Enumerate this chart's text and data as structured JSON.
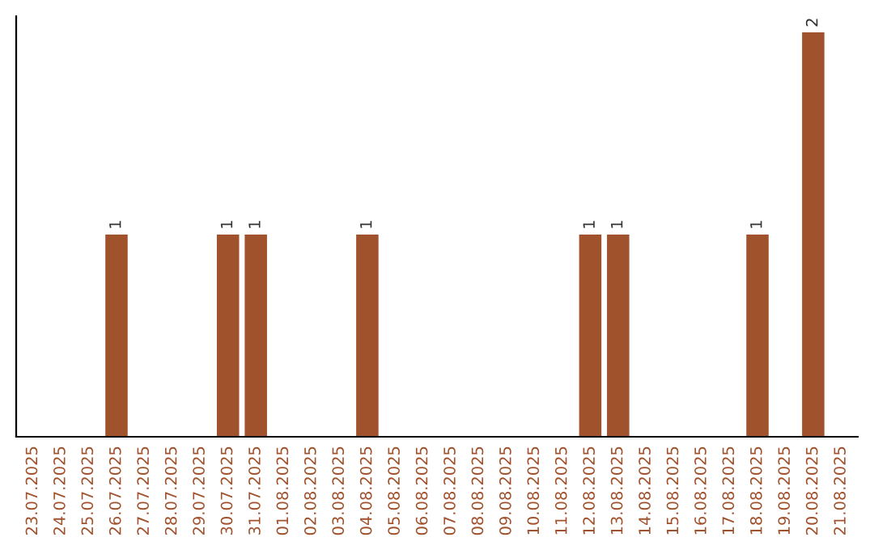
{
  "chart_data": {
    "type": "bar",
    "categories": [
      "23.07.2025",
      "24.07.2025",
      "25.07.2025",
      "26.07.2025",
      "27.07.2025",
      "28.07.2025",
      "29.07.2025",
      "30.07.2025",
      "31.07.2025",
      "01.08.2025",
      "02.08.2025",
      "03.08.2025",
      "04.08.2025",
      "05.08.2025",
      "06.08.2025",
      "07.08.2025",
      "08.08.2025",
      "09.08.2025",
      "10.08.2025",
      "11.08.2025",
      "12.08.2025",
      "13.08.2025",
      "14.08.2025",
      "15.08.2025",
      "16.08.2025",
      "17.08.2025",
      "18.08.2025",
      "19.08.2025",
      "20.08.2025",
      "21.08.2025"
    ],
    "values": [
      null,
      null,
      null,
      1,
      null,
      null,
      null,
      1,
      1,
      null,
      null,
      null,
      1,
      null,
      null,
      null,
      null,
      null,
      null,
      null,
      1,
      1,
      null,
      null,
      null,
      null,
      1,
      null,
      2,
      null
    ],
    "color": "#a0522d",
    "data_labels": true,
    "tick_labels": "x",
    "grid": false
  }
}
